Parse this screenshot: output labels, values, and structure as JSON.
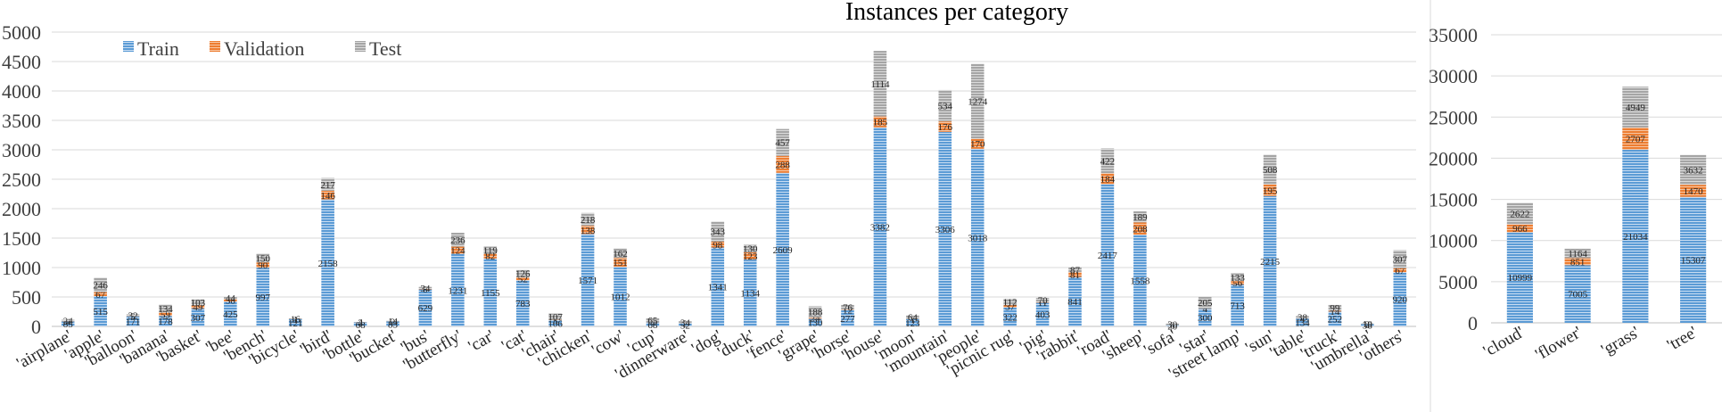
{
  "chart_data": [
    {
      "type": "bar",
      "stacked": true,
      "title": "Instances per category",
      "ylim": [
        0,
        5000
      ],
      "yticks": [
        0,
        500,
        1000,
        1500,
        2000,
        2500,
        3000,
        3500,
        4000,
        4500,
        5000
      ],
      "legend_position": "top-left",
      "categories": [
        "'airplane'",
        "'apple'",
        "'balloon'",
        "'banana'",
        "'basket'",
        "'bee'",
        "'bench'",
        "'bicycle'",
        "'bird'",
        "'bottle'",
        "'bucket'",
        "'bus'",
        "'butterfly'",
        "'car'",
        "'cat'",
        "'chair'",
        "'chicken'",
        "'cow'",
        "'cup'",
        "'dinnerware'",
        "'dog'",
        "'duck'",
        "'fence'",
        "'grape'",
        "'horse'",
        "'house'",
        "'moon'",
        "'mountain'",
        "'people'",
        "'picnic rug'",
        "'pig'",
        "'rabbit'",
        "'road'",
        "'sheep'",
        "'sofa'",
        "'star'",
        "'street lamp'",
        "'sun'",
        "'table'",
        "'truck'",
        "'umbrella'",
        "'others'"
      ],
      "series": [
        {
          "name": "Train",
          "color": "#5b9bd5",
          "values": [
            85,
            515,
            171,
            178,
            307,
            425,
            997,
            121,
            2158,
            68,
            83,
            629,
            1231,
            1155,
            783,
            106,
            1571,
            1012,
            68,
            52,
            1341,
            1134,
            2609,
            130,
            277,
            3382,
            123,
            3306,
            3018,
            322,
            403,
            841,
            2417,
            1558,
            20,
            300,
            713,
            2215,
            134,
            252,
            38,
            920
          ]
        },
        {
          "name": "Validation",
          "color": "#ed7d31",
          "values": [
            4,
            67,
            3,
            59,
            49,
            38,
            90,
            1,
            146,
            2,
            2,
            8,
            124,
            82,
            52,
            5,
            138,
            151,
            4,
            2,
            98,
            123,
            288,
            24,
            12,
            185,
            1,
            176,
            170,
            37,
            11,
            81,
            184,
            208,
            0,
            4,
            56,
            195,
            4,
            14,
            2,
            67
          ]
        },
        {
          "name": "Test",
          "color": "#a5a5a5",
          "values": [
            24,
            246,
            32,
            134,
            103,
            44,
            150,
            16,
            217,
            4,
            14,
            34,
            236,
            119,
            126,
            107,
            218,
            162,
            65,
            34,
            343,
            130,
            457,
            188,
            76,
            1114,
            64,
            534,
            1274,
            112,
            70,
            87,
            422,
            189,
            30,
            205,
            133,
            508,
            38,
            99,
            10,
            307
          ]
        }
      ]
    },
    {
      "type": "bar",
      "stacked": true,
      "ylim": [
        0,
        35000
      ],
      "yticks": [
        0,
        5000,
        10000,
        15000,
        20000,
        25000,
        30000,
        35000
      ],
      "categories": [
        "'cloud'",
        "'flower'",
        "'grass'",
        "'tree'"
      ],
      "series": [
        {
          "name": "Train",
          "color": "#5b9bd5",
          "values": [
            10999,
            7005,
            21034,
            15307
          ]
        },
        {
          "name": "Validation",
          "color": "#ed7d31",
          "values": [
            966,
            851,
            2707,
            1470
          ]
        },
        {
          "name": "Test",
          "color": "#a5a5a5",
          "values": [
            2622,
            1164,
            4949,
            3632
          ]
        }
      ]
    }
  ]
}
